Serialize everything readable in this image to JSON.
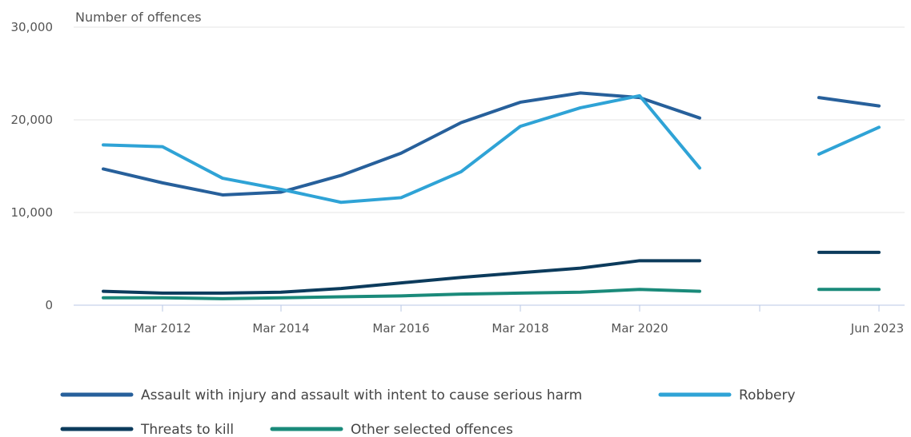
{
  "chart_data": {
    "type": "line",
    "ylabel": "Number of offences",
    "ylim": [
      0,
      30000
    ],
    "yticks": [
      "0",
      "10,000",
      "20,000",
      "30,000"
    ],
    "x": [
      "Mar 2011",
      "Mar 2012",
      "Mar 2013",
      "Mar 2014",
      "Mar 2015",
      "Mar 2016",
      "Mar 2017",
      "Mar 2018",
      "Mar 2019",
      "Mar 2020",
      "Mar 2021",
      "Mar 2022",
      "Jun 2022",
      "Jun 2023"
    ],
    "xtick_labels": [
      "Mar 2012",
      "Mar 2014",
      "Mar 2016",
      "Mar 2018",
      "Mar 2020",
      "",
      "Jun 2023"
    ],
    "legend_position": "bottom",
    "series": [
      {
        "name": "Assault with injury and assault with intent to cause serious harm",
        "color": "#27609b",
        "values": [
          14700,
          13200,
          11900,
          12200,
          14000,
          16400,
          19700,
          21900,
          22900,
          22400,
          20200,
          null,
          22400,
          21500
        ]
      },
      {
        "name": "Robbery",
        "color": "#2fa3d6",
        "values": [
          17300,
          17100,
          13700,
          12500,
          11100,
          11600,
          14400,
          19300,
          21300,
          22600,
          14800,
          null,
          16300,
          19200
        ]
      },
      {
        "name": "Threats to kill",
        "color": "#0c3b5c",
        "values": [
          1500,
          1300,
          1300,
          1400,
          1800,
          2400,
          3000,
          3500,
          4000,
          4800,
          4800,
          null,
          5700,
          5700
        ]
      },
      {
        "name": "Other selected offences",
        "color": "#1a8a7a",
        "values": [
          800,
          800,
          700,
          800,
          900,
          1000,
          1200,
          1300,
          1400,
          1700,
          1500,
          null,
          1700,
          1700
        ]
      }
    ]
  }
}
